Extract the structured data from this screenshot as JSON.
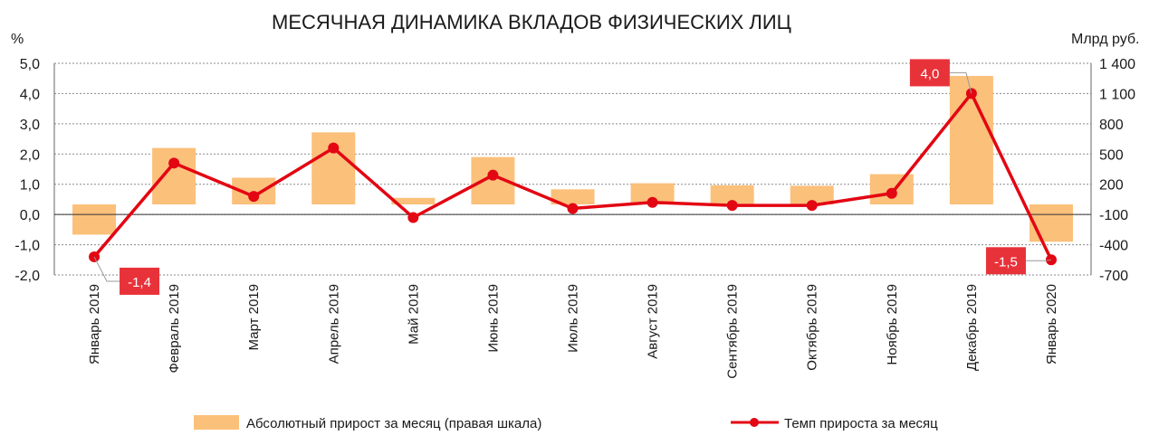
{
  "chart_data": {
    "type": "bar+line",
    "title": "МЕСЯЧНАЯ ДИНАМИКА ВКЛАДОВ ФИЗИЧЕСКИХ ЛИЦ",
    "left_axis_label": "%",
    "right_axis_label": "Млрд руб.",
    "categories": [
      "Январь 2019",
      "Февраль 2019",
      "Март 2019",
      "Апрель 2019",
      "Май 2019",
      "Июнь 2019",
      "Июль 2019",
      "Август 2019",
      "Сентябрь 2019",
      "Октябрь 2019",
      "Ноябрь 2019",
      "Декабрь 2019",
      "Январь 2020"
    ],
    "left_axis": {
      "ylim": [
        -2.0,
        5.0
      ],
      "ticks": [
        5.0,
        4.0,
        3.0,
        2.0,
        1.0,
        0.0,
        -1.0,
        -2.0
      ],
      "tick_labels": [
        "5,0",
        "4,0",
        "3,0",
        "2,0",
        "1,0",
        "0,0",
        "-1,0",
        "-2,0"
      ]
    },
    "right_axis": {
      "ylim": [
        -700,
        1400
      ],
      "ticks": [
        1400,
        1100,
        800,
        500,
        200,
        -100,
        -400,
        -700
      ],
      "tick_labels": [
        "1 400",
        "1 100",
        "800",
        "500",
        "200",
        "-100",
        "-400",
        "-700"
      ]
    },
    "grid": true,
    "legend_position": "bottom",
    "series": [
      {
        "name": "Абсолютный прирост за месяц (правая шкала)",
        "kind": "bar",
        "axis": "right",
        "color": "#FBC07A",
        "values": [
          -300,
          560,
          265,
          715,
          65,
          470,
          150,
          210,
          190,
          185,
          300,
          1275,
          -370
        ]
      },
      {
        "name": "Темп прироста за месяц",
        "kind": "line",
        "axis": "left",
        "color": "#E30613",
        "values": [
          -1.4,
          1.7,
          0.6,
          2.2,
          -0.1,
          1.3,
          0.2,
          0.4,
          0.3,
          0.3,
          0.7,
          4.0,
          -1.5
        ]
      }
    ],
    "callouts": [
      {
        "index": 0,
        "label": "-1,4"
      },
      {
        "index": 11,
        "label": "4,0"
      },
      {
        "index": 12,
        "label": "-1,5"
      }
    ]
  }
}
